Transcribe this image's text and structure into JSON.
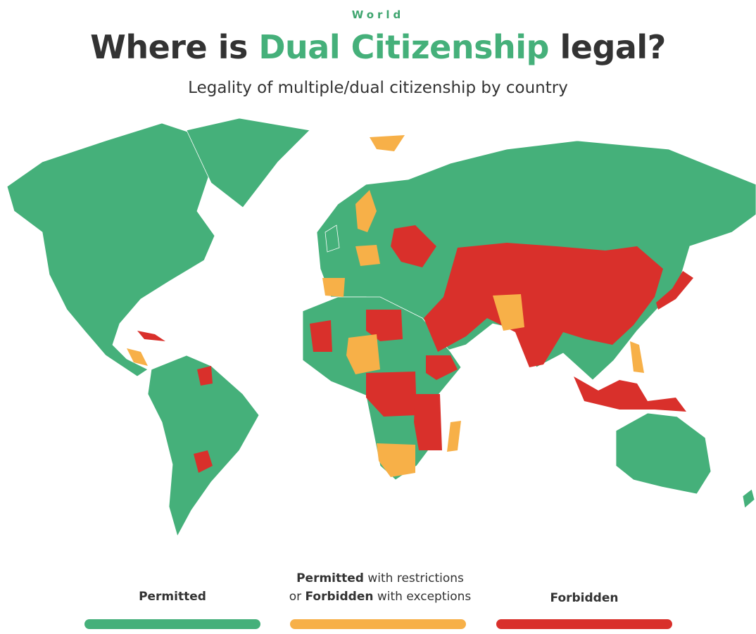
{
  "header": {
    "kicker": "World",
    "title_pre": "Where is ",
    "title_highlight": "Dual Citizenship",
    "title_post": " legal?",
    "subtitle": "Legality of multiple/dual citizenship by country"
  },
  "colors": {
    "permitted": "#45b07a",
    "restricted": "#f7b048",
    "forbidden": "#d9302b",
    "title_accent": "#45b07a"
  },
  "legend": [
    {
      "bold": "Permitted",
      "rest": "",
      "color": "#45b07a"
    },
    {
      "bold": "Permitted",
      "rest": " with restrictions",
      "bold2": "Forbidden",
      "rest2": " with exceptions",
      "pre2": "or ",
      "color": "#f7b048"
    },
    {
      "bold": "Forbidden",
      "rest": "",
      "color": "#d9302b"
    }
  ]
}
